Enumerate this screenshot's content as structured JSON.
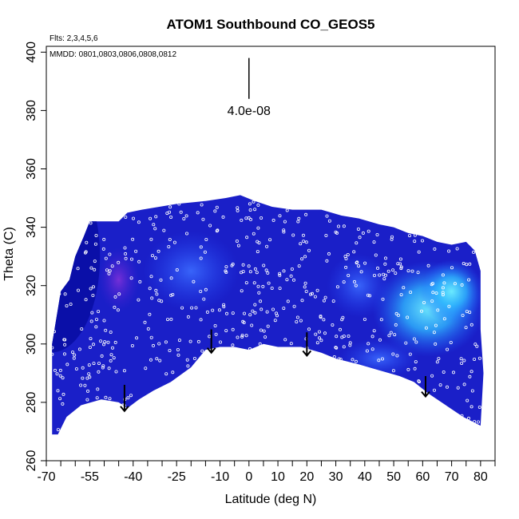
{
  "chart_data": {
    "type": "heatmap",
    "title": "ATOM1 Southbound CO_GEOS5",
    "subtitle_flights": "Flts: 2,3,4,5,6",
    "subtitle_dates": "MMDD: 0801,0803,0806,0808,0812",
    "xlabel": "Latitude (deg N)",
    "ylabel": "Theta (C)",
    "xlim": [
      -70,
      85
    ],
    "ylim": [
      260,
      402
    ],
    "x_tick_labels": [
      "-70",
      "-55",
      "-40",
      "-25",
      "-10",
      "0",
      "10",
      "20",
      "30",
      "40",
      "50",
      "60",
      "70",
      "80"
    ],
    "x_tick_values": [
      -70,
      -55,
      -40,
      -25,
      -10,
      0,
      10,
      20,
      30,
      40,
      50,
      60,
      70,
      80
    ],
    "x_minor_ticks": [
      -65,
      -60,
      -50,
      -45,
      -35,
      -30,
      -20,
      -15,
      -5,
      5,
      15,
      25,
      35,
      45,
      55,
      65,
      75,
      85
    ],
    "y_tick_labels": [
      "260",
      "280",
      "300",
      "320",
      "340",
      "360",
      "380",
      "400"
    ],
    "y_tick_values": [
      260,
      280,
      300,
      320,
      340,
      360,
      380,
      400
    ],
    "scale_annotation": {
      "label": "4.0e-08",
      "x": 0,
      "y_top": 398,
      "y_bottom": 384
    },
    "colors": {
      "background_fill": "#1a1fc8",
      "low": "#0a0fb0",
      "high": "#3ad8ff",
      "purple": "#6a2bd0",
      "sample_dot": "#ffffff"
    },
    "profile_top": [
      [
        -65,
        318
      ],
      [
        -62,
        322
      ],
      [
        -60,
        330
      ],
      [
        -57,
        337
      ],
      [
        -55,
        342
      ],
      [
        -45,
        342
      ],
      [
        -42,
        345
      ],
      [
        -37,
        346
      ],
      [
        -25,
        348
      ],
      [
        -15,
        349
      ],
      [
        -8,
        350
      ],
      [
        -3,
        351
      ],
      [
        2,
        349
      ],
      [
        8,
        347
      ],
      [
        15,
        346
      ],
      [
        25,
        346
      ],
      [
        32,
        344
      ],
      [
        38,
        343
      ],
      [
        45,
        341
      ],
      [
        50,
        340
      ],
      [
        55,
        338
      ],
      [
        60,
        337
      ],
      [
        65,
        335
      ],
      [
        70,
        334
      ],
      [
        75,
        335
      ],
      [
        78,
        332
      ],
      [
        80,
        325
      ],
      [
        80,
        305
      ],
      [
        81,
        290
      ],
      [
        80,
        272
      ]
    ],
    "profile_bottom": [
      [
        -68,
        269
      ],
      [
        -66,
        269
      ],
      [
        -63,
        275
      ],
      [
        -58,
        279
      ],
      [
        -51,
        281
      ],
      [
        -45,
        280
      ],
      [
        -42,
        278
      ],
      [
        -38,
        281
      ],
      [
        -33,
        284
      ],
      [
        -27,
        287
      ],
      [
        -20,
        292
      ],
      [
        -15,
        298
      ],
      [
        -10,
        299
      ],
      [
        -5,
        299
      ],
      [
        0,
        298
      ],
      [
        5,
        300
      ],
      [
        10,
        299
      ],
      [
        18,
        299
      ],
      [
        25,
        297
      ],
      [
        30,
        295
      ],
      [
        38,
        293
      ],
      [
        45,
        291
      ],
      [
        52,
        289
      ],
      [
        57,
        287
      ],
      [
        62,
        283
      ],
      [
        68,
        279
      ],
      [
        74,
        275
      ],
      [
        80,
        272
      ]
    ],
    "arrows": [
      {
        "x": -43,
        "y_from": 286,
        "y_to": 277
      },
      {
        "x": -13,
        "y_from": 305,
        "y_to": 297
      },
      {
        "x": 20,
        "y_from": 304,
        "y_to": 296
      },
      {
        "x": 61,
        "y_from": 289,
        "y_to": 282
      }
    ],
    "grid": false,
    "legend": "none"
  }
}
